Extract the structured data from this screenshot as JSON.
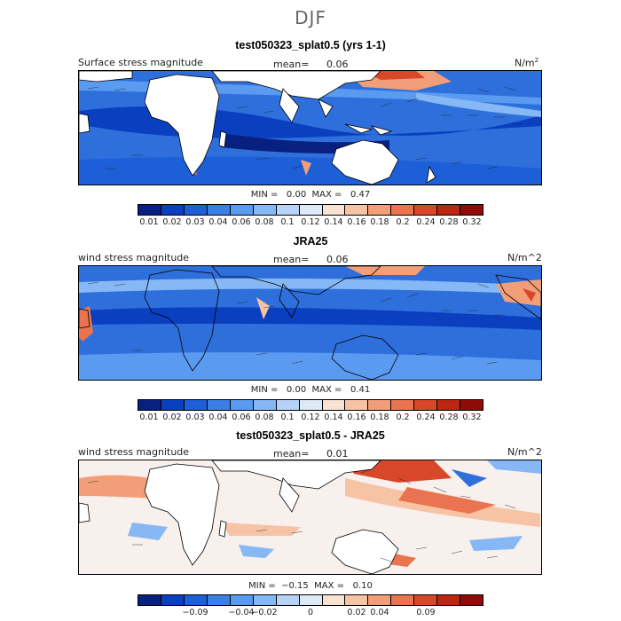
{
  "title": "DJF",
  "palette": [
    "#08207f",
    "#0a3fbf",
    "#1d5fd6",
    "#3a7fe3",
    "#5a9af0",
    "#86b8f5",
    "#b6d3f7",
    "#dde9f7",
    "#f7e2d3",
    "#f6c3a5",
    "#f29e79",
    "#e9744f",
    "#d9472a",
    "#bc2714",
    "#8e0d09"
  ],
  "panels": [
    {
      "title": "test050323_splat0.5 (yrs 1-1)",
      "left_label": "Surface stress magnitude",
      "mean_label": "mean=",
      "mean_value": "0.06",
      "units": "N/m",
      "units_sup": "2",
      "min_label": "MIN =",
      "min_value": "0.00",
      "max_label": "MAX =",
      "max_value": "0.47",
      "colorbar_ticks": [
        "0.01",
        "0.02",
        "0.03",
        "0.04",
        "0.06",
        "0.08",
        "0.1",
        "0.12",
        "0.14",
        "0.16",
        "0.18",
        "0.2",
        "0.24",
        "0.28",
        "0.32"
      ]
    },
    {
      "title": "JRA25",
      "left_label": "wind stress magnitude",
      "mean_label": "mean=",
      "mean_value": "0.06",
      "units": "N/m^2",
      "units_sup": "",
      "min_label": "MIN =",
      "min_value": "0.00",
      "max_label": "MAX =",
      "max_value": "0.41",
      "colorbar_ticks": [
        "0.01",
        "0.02",
        "0.03",
        "0.04",
        "0.06",
        "0.08",
        "0.1",
        "0.12",
        "0.14",
        "0.16",
        "0.18",
        "0.2",
        "0.24",
        "0.28",
        "0.32"
      ]
    },
    {
      "title": "test050323_splat0.5 - JRA25",
      "left_label": "wind stress magnitude",
      "mean_label": "mean=",
      "mean_value": "0.01",
      "units": "N/m^2",
      "units_sup": "",
      "min_label": "MIN =",
      "min_value": "−0.15",
      "max_label": "MAX =",
      "max_value": "0.10",
      "colorbar_ticks": [
        "−0.09",
        "−0.04",
        "−0.02",
        "0",
        "0.02",
        "0.04",
        "0.09"
      ]
    }
  ]
}
